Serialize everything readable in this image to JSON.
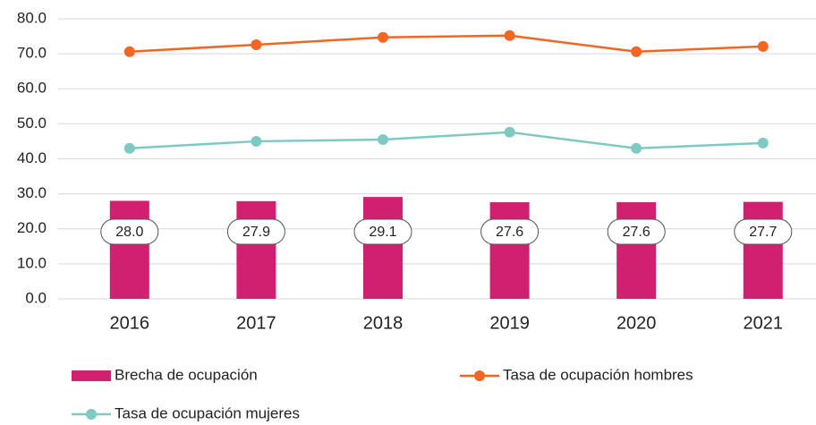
{
  "chart_data": {
    "type": "bar_line",
    "categories": [
      "2016",
      "2017",
      "2018",
      "2019",
      "2020",
      "2021"
    ],
    "series": [
      {
        "name": "Brecha de ocupación",
        "type": "bar",
        "color": "#d0206f",
        "values": [
          28.0,
          27.9,
          29.1,
          27.6,
          27.6,
          27.7
        ],
        "value_labels": [
          "28.0",
          "27.9",
          "29.1",
          "27.6",
          "27.6",
          "27.7"
        ]
      },
      {
        "name": "Tasa de ocupación hombres",
        "type": "line",
        "color": "#f26522",
        "values": [
          70.6,
          72.6,
          74.7,
          75.2,
          70.6,
          72.1
        ]
      },
      {
        "name": "Tasa de ocupación mujeres",
        "type": "line",
        "color": "#7ecac3",
        "values": [
          43.0,
          45.0,
          45.5,
          47.6,
          43.0,
          44.5
        ]
      }
    ],
    "ylim": [
      0,
      80
    ],
    "yticks": [
      {
        "value": 0,
        "label": "0.0"
      },
      {
        "value": 10,
        "label": "10.0"
      },
      {
        "value": 20,
        "label": "20.0"
      },
      {
        "value": 30,
        "label": "30.0"
      },
      {
        "value": 40,
        "label": "40.0"
      },
      {
        "value": 50,
        "label": "50.0"
      },
      {
        "value": 60,
        "label": "60.0"
      },
      {
        "value": 70,
        "label": "70.0"
      },
      {
        "value": 80,
        "label": "80.0"
      }
    ],
    "grid": true
  }
}
